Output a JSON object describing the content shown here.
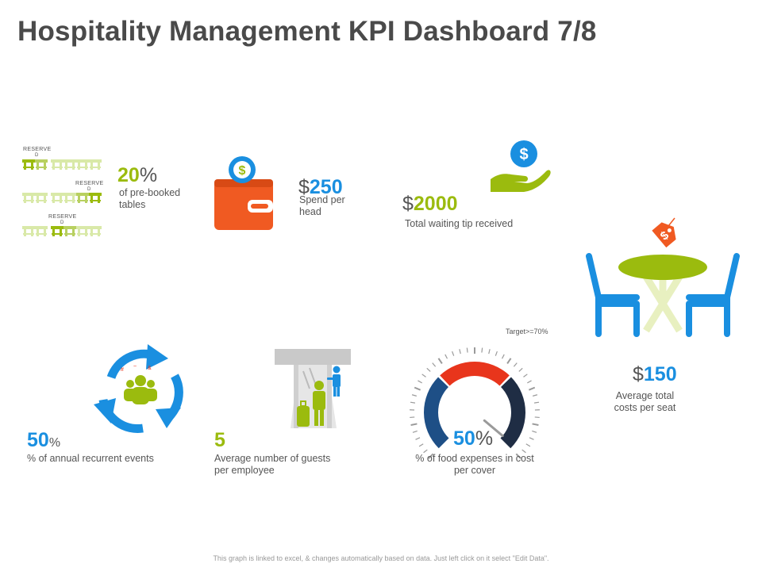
{
  "title": "Hospitality Management KPI Dashboard 7/8",
  "colors": {
    "green": "#9bbb0e",
    "blue": "#1a8fe0",
    "orange": "#f05a22",
    "red": "#e8351c",
    "navy": "#1f2d44",
    "steel": "#1e4f86"
  },
  "kpis": {
    "prebooked": {
      "value": "20",
      "suffix": "%",
      "label": "of pre-booked tables",
      "icon": "table-rows-icon",
      "reserve_label": "RESERVE",
      "reserve_sub": "D"
    },
    "spend_per_head": {
      "prefix": "$",
      "value": "250",
      "label": "Spend per head",
      "icon": "wallet-icon"
    },
    "waiting_tip": {
      "prefix": "$",
      "value": "2000",
      "label": "Total waiting tip received",
      "icon": "hand-dollar-icon"
    },
    "avg_cost_seat": {
      "prefix": "$",
      "value": "150",
      "label": "Average total costs per seat",
      "icon": "table-chairs-icon"
    },
    "recurrent_events": {
      "value": "50",
      "suffix": "%",
      "label": "% of annual recurrent events",
      "icon": "recycle-people-icon"
    },
    "guests_per_employee": {
      "value": "5",
      "label": "Average number of guests per employee",
      "icon": "guest-employee-icon"
    },
    "food_expenses": {
      "value": "50",
      "suffix": "%",
      "label": "% of food expenses in cost per cover",
      "target_label": "Target>=70%",
      "gauge_fraction": 0.5,
      "icon": "gauge-icon"
    }
  },
  "footer": "This graph is linked to excel, & changes automatically based on data. Just left click on it select \"Edit Data\"."
}
